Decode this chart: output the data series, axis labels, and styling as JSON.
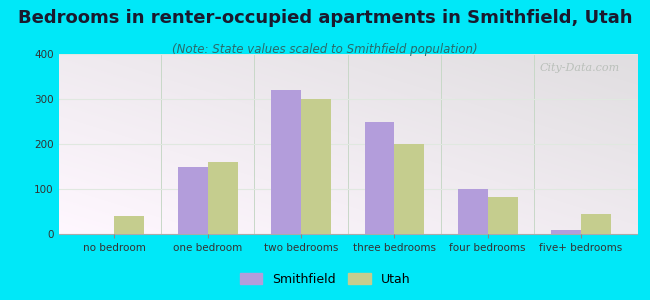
{
  "title": "Bedrooms in renter-occupied apartments in Smithfield, Utah",
  "subtitle": "(Note: State values scaled to Smithfield population)",
  "categories": [
    "no bedroom",
    "one bedroom",
    "two bedrooms",
    "three bedrooms",
    "four bedrooms",
    "five+ bedrooms"
  ],
  "smithfield_values": [
    0,
    148,
    320,
    250,
    100,
    10
  ],
  "utah_values": [
    40,
    160,
    300,
    200,
    82,
    45
  ],
  "smithfield_color": "#b39ddb",
  "utah_color": "#c5cd8e",
  "background_outer": "#00e8f8",
  "ylim": [
    0,
    400
  ],
  "yticks": [
    0,
    100,
    200,
    300,
    400
  ],
  "bar_width": 0.32,
  "watermark_text": "City-Data.com",
  "title_fontsize": 13,
  "subtitle_fontsize": 8.5,
  "tick_fontsize": 7.5,
  "legend_fontsize": 9,
  "grid_color": "#e0e8e0",
  "separator_color": "#c8d8c8"
}
